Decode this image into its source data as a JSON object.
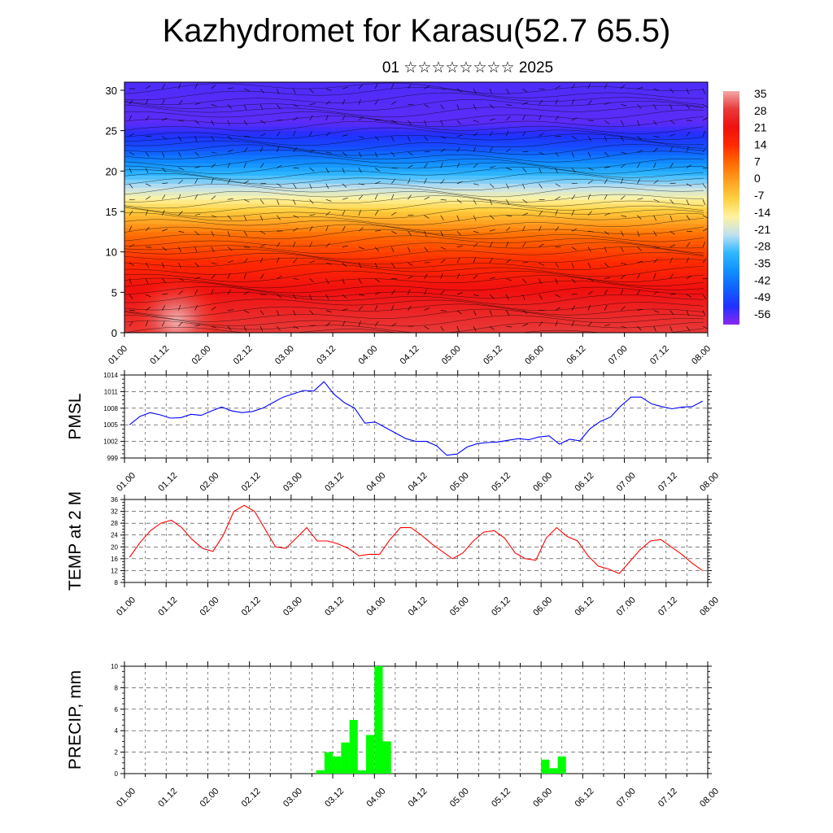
{
  "header": {
    "title": "Kazhydromet for Karasu(52.7 65.5)",
    "subtitle": "01 ☆☆☆☆☆☆☆☆ 2025"
  },
  "colors": {
    "pmsl_line": "#0000ff",
    "temp_line": "#ff0000",
    "precip_bar": "#00ff00",
    "contour": "#000000"
  },
  "chart_data": [
    {
      "type": "heatmap",
      "title": "",
      "xlabel": "",
      "ylabel": "",
      "x_ticks": [
        "01.00",
        "01.12",
        "02.00",
        "02.12",
        "03.00",
        "03.12",
        "04.00",
        "04.12",
        "05.00",
        "05.12",
        "06.00",
        "06.12",
        "07.00",
        "07.12",
        "08.00"
      ],
      "y_ticks": [
        0,
        5,
        10,
        15,
        20,
        25,
        30
      ],
      "ylim": [
        0,
        31
      ],
      "colorbar": {
        "labels": [
          35,
          28,
          21,
          14,
          7,
          0,
          -7,
          -14,
          -21,
          -28,
          -35,
          -42,
          -49,
          -56
        ],
        "colors": [
          "#f4a6a6",
          "#e83a3a",
          "#f01010",
          "#ff2a00",
          "#ff6a00",
          "#ffa020",
          "#ffd040",
          "#fff3a0",
          "#c0e0f0",
          "#30b8ff",
          "#1090ff",
          "#1060ff",
          "#2030ff",
          "#8a28f0"
        ]
      },
      "profile_temperature": [
        {
          "height": 0,
          "value": 28
        },
        {
          "height": 6,
          "value": 20
        },
        {
          "height": 12,
          "value": 7
        },
        {
          "height": 15,
          "value": -6
        },
        {
          "height": 17,
          "value": -16
        },
        {
          "height": 20,
          "value": -30
        },
        {
          "height": 23,
          "value": -45
        },
        {
          "height": 26,
          "value": -53
        },
        {
          "height": 31,
          "value": -52
        }
      ],
      "warm_spot": {
        "time_index": 2.5,
        "height": 1.5,
        "value": 34
      }
    },
    {
      "type": "line",
      "title": "",
      "xlabel": "",
      "ylabel": "PMSL",
      "ylim": [
        999,
        1014
      ],
      "y_ticks": [
        999,
        1002,
        1005,
        1008,
        1011,
        1014
      ],
      "x_ticks": [
        "01.00",
        "01.12",
        "02.00",
        "02.12",
        "03.00",
        "03.12",
        "04.00",
        "04.12",
        "05.00",
        "05.12",
        "06.00",
        "06.12",
        "07.00",
        "07.12",
        "08.00"
      ],
      "values": [
        1005,
        1006.5,
        1007.2,
        1006.8,
        1006.2,
        1006.3,
        1006.9,
        1006.7,
        1007.5,
        1008.2,
        1007.5,
        1007.2,
        1007.4,
        1008.0,
        1009.0,
        1010.0,
        1010.6,
        1011.2,
        1011.1,
        1012.8,
        1010.5,
        1009.0,
        1008.0,
        1005.3,
        1005.5,
        1004.5,
        1003.5,
        1002.5,
        1002.0,
        1002.0,
        1001.2,
        999.5,
        999.7,
        1001.0,
        1001.6,
        1001.8,
        1001.9,
        1002.2,
        1002.5,
        1002.3,
        1002.8,
        1003.0,
        1001.5,
        1002.4,
        1002.1,
        1004.3,
        1005.6,
        1006.4,
        1008.4,
        1010.0,
        1010.0,
        1008.8,
        1008.3,
        1007.9,
        1008.2,
        1008.3,
        1009.3
      ]
    },
    {
      "type": "line",
      "title": "",
      "xlabel": "",
      "ylabel": "TEMP at 2 M",
      "ylim": [
        8,
        36
      ],
      "y_ticks": [
        8,
        12,
        16,
        20,
        24,
        28,
        32,
        36
      ],
      "x_ticks": [
        "01.00",
        "01.12",
        "02.00",
        "02.12",
        "03.00",
        "03.12",
        "04.00",
        "04.12",
        "05.00",
        "05.12",
        "06.00",
        "06.12",
        "07.00",
        "07.12",
        "08.00"
      ],
      "values": [
        16.5,
        21.5,
        25.5,
        28.0,
        29.0,
        26.5,
        22.5,
        19.5,
        18.5,
        24.0,
        32.0,
        34.0,
        32.0,
        26.0,
        20.0,
        19.5,
        23.0,
        26.5,
        22.0,
        22.0,
        21.0,
        19.5,
        17.0,
        17.5,
        17.5,
        22.5,
        26.5,
        26.5,
        24.0,
        21.0,
        18.5,
        16.0,
        18.0,
        22.0,
        25.0,
        25.5,
        23.0,
        18.0,
        16.0,
        15.5,
        23.0,
        26.5,
        23.5,
        22.0,
        17.0,
        13.5,
        12.5,
        11.0,
        15.0,
        19.0,
        22.0,
        22.5,
        20.0,
        17.5,
        14.5,
        12.0
      ]
    },
    {
      "type": "bar",
      "title": "",
      "xlabel": "",
      "ylabel": "PRECIP, mm",
      "ylim": [
        0,
        10
      ],
      "y_ticks": [
        0,
        2,
        4,
        6,
        8,
        10
      ],
      "x_ticks": [
        "01.00",
        "01.12",
        "02.00",
        "02.12",
        "03.00",
        "03.12",
        "04.00",
        "04.12",
        "05.00",
        "05.12",
        "06.00",
        "06.12",
        "07.00",
        "07.12",
        "08.00"
      ],
      "values": [
        0,
        0,
        0,
        0,
        0,
        0,
        0,
        0,
        0,
        0,
        0,
        0,
        0,
        0,
        0,
        0,
        0,
        0,
        0,
        0,
        0,
        0,
        0,
        0.3,
        2.0,
        1.6,
        2.9,
        5.0,
        0.3,
        3.6,
        10.0,
        3.0,
        0,
        0,
        0,
        0,
        0,
        0,
        0,
        0,
        0,
        0,
        0,
        0,
        0,
        0,
        0,
        0,
        0,
        0,
        1.3,
        0.5,
        1.6,
        0,
        0,
        0,
        0,
        0,
        0,
        0,
        0,
        0,
        0,
        0,
        0,
        0,
        0,
        0,
        0,
        0
      ]
    }
  ]
}
